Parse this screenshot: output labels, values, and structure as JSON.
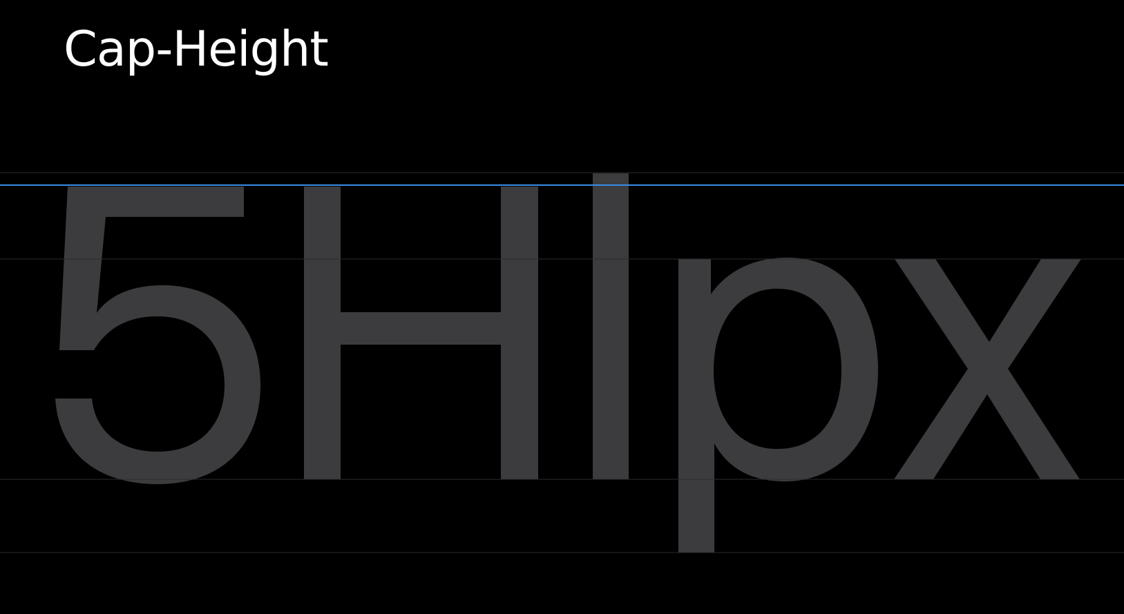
{
  "slide": {
    "title": "Cap-Height"
  },
  "specimen": {
    "text": "5HIpx",
    "glyph_color": "#3c3c3e",
    "guide_color": "#2c2c2e",
    "highlight_color": "#3a8ee6",
    "highlighted_line": "cap-height"
  },
  "guides": [
    {
      "name": "ascender-line",
      "highlighted": false
    },
    {
      "name": "cap-height-line",
      "highlighted": true
    },
    {
      "name": "x-height-line",
      "highlighted": false
    },
    {
      "name": "baseline",
      "highlighted": false
    },
    {
      "name": "descender-line",
      "highlighted": false
    }
  ],
  "background_color": "#000000"
}
